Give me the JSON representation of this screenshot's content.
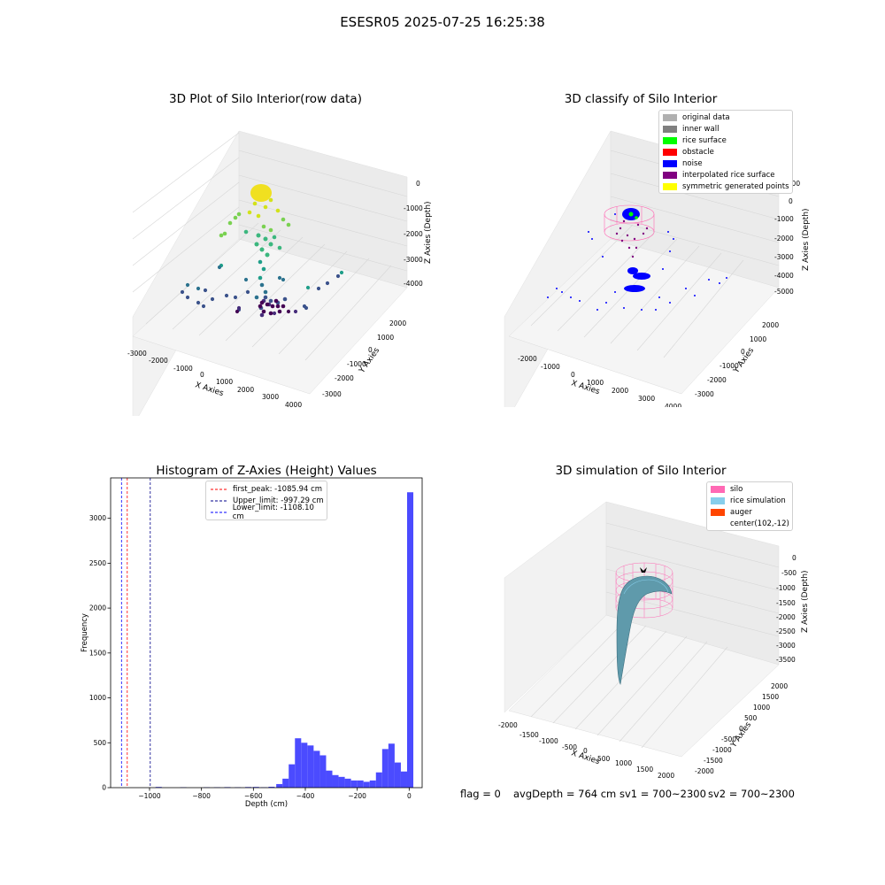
{
  "suptitle": "ESESR05 2025-07-25 16:25:38",
  "status_bar": {
    "flag": "flag = 0",
    "avg_depth": "avgDepth = 764 cm",
    "sv1": "sv1 = 700~2300",
    "sv2": "sv2 = 700~2300"
  },
  "colors": {
    "histogram_bar": "#4b4bff",
    "first_peak": "#ff0000",
    "upper_limit": "#00008b",
    "lower_limit": "#0000ff",
    "silo": "#ff69b4",
    "rice": "#87ceeb",
    "auger": "#ff4500"
  },
  "chart_data": [
    {
      "type": "scatter3d",
      "title": "3D Plot of Silo Interior(row data)",
      "xlabel": "X Axies",
      "ylabel": "Y Axies",
      "zlabel": "Z Axies (Depth)",
      "xticks": [
        "-3000",
        "-2000",
        "-1000",
        "0",
        "1000",
        "2000",
        "3000",
        "4000"
      ],
      "yticks": [
        "2000",
        "1000",
        "0",
        "-1000",
        "-2000",
        "-3000"
      ],
      "zticks": [
        "0",
        "-1000",
        "-2000",
        "-3000",
        "-4000"
      ],
      "colormap": "viridis"
    },
    {
      "type": "scatter3d",
      "title": "3D classify of Silo Interior",
      "xlabel": "X Axies",
      "ylabel": "Y Axies",
      "zlabel": "Z Axies (Depth)",
      "xticks": [
        "-2000",
        "-1000",
        "0",
        "1000",
        "2000",
        "3000",
        "4000"
      ],
      "yticks": [
        "2000",
        "1000",
        "0",
        "-1000",
        "-2000",
        "-3000"
      ],
      "zticks": [
        "1000",
        "0",
        "-1000",
        "-2000",
        "-3000",
        "-4000",
        "-5000"
      ],
      "legend": [
        {
          "label": "original data",
          "color": "#b0b0b0"
        },
        {
          "label": "inner wall",
          "color": "#808080"
        },
        {
          "label": "rice surface",
          "color": "#00ff00"
        },
        {
          "label": "obstacle",
          "color": "#ff0000"
        },
        {
          "label": "noise",
          "color": "#0000ff"
        },
        {
          "label": "interpolated rice surface",
          "color": "#800080"
        },
        {
          "label": "symmetric generated points",
          "color": "#ffff00"
        }
      ]
    },
    {
      "type": "bar",
      "title": "Histogram of Z-Axies (Height) Values",
      "xlabel": "Depth (cm)",
      "ylabel": "Frequency",
      "xlim": [
        -1150,
        50
      ],
      "ylim": [
        0,
        3450
      ],
      "xticks": [
        -1000,
        -800,
        -600,
        -400,
        -200,
        0
      ],
      "yticks": [
        0,
        500,
        1000,
        1500,
        2000,
        2500,
        3000
      ],
      "bin_width": 24,
      "bins": [
        {
          "x": -965,
          "y": 8
        },
        {
          "x": -870,
          "y": 5
        },
        {
          "x": -780,
          "y": 5
        },
        {
          "x": -740,
          "y": 5
        },
        {
          "x": -700,
          "y": 6
        },
        {
          "x": -660,
          "y": 5
        },
        {
          "x": -620,
          "y": 7
        },
        {
          "x": -590,
          "y": 8
        },
        {
          "x": -560,
          "y": 5
        },
        {
          "x": -530,
          "y": 10
        },
        {
          "x": -500,
          "y": 40
        },
        {
          "x": -476,
          "y": 100
        },
        {
          "x": -452,
          "y": 260
        },
        {
          "x": -428,
          "y": 550
        },
        {
          "x": -404,
          "y": 500
        },
        {
          "x": -380,
          "y": 470
        },
        {
          "x": -356,
          "y": 410
        },
        {
          "x": -332,
          "y": 360
        },
        {
          "x": -308,
          "y": 190
        },
        {
          "x": -284,
          "y": 140
        },
        {
          "x": -260,
          "y": 120
        },
        {
          "x": -236,
          "y": 100
        },
        {
          "x": -212,
          "y": 80
        },
        {
          "x": -188,
          "y": 80
        },
        {
          "x": -164,
          "y": 65
        },
        {
          "x": -140,
          "y": 80
        },
        {
          "x": -116,
          "y": 170
        },
        {
          "x": -92,
          "y": 430
        },
        {
          "x": -68,
          "y": 490
        },
        {
          "x": -44,
          "y": 280
        },
        {
          "x": -20,
          "y": 180
        },
        {
          "x": 4,
          "y": 3290
        }
      ],
      "vlines": [
        {
          "label": "first_peak: -1085.94 cm",
          "x": -1085.94,
          "color": "#ff0000"
        },
        {
          "label": "Upper_limit: -997.29 cm",
          "x": -997.29,
          "color": "#00008b"
        },
        {
          "label": "Lower_limit: -1108.10 cm",
          "x": -1108.1,
          "color": "#0000ff"
        }
      ],
      "legend_position": "top-center"
    },
    {
      "type": "surface3d",
      "title": "3D simulation of Silo Interior",
      "xlabel": "X Axies",
      "ylabel": "Y Axies",
      "zlabel": "Z Axies (Depth)",
      "xticks": [
        "-2000",
        "-1500",
        "-1000",
        "-500",
        "0",
        "500",
        "1000",
        "1500",
        "2000"
      ],
      "yticks": [
        "2000",
        "1500",
        "1000",
        "500",
        "0",
        "-500",
        "-1000",
        "-1500",
        "-2000"
      ],
      "zticks": [
        "0",
        "-500",
        "-1000",
        "-1500",
        "-2000",
        "-2500",
        "-3000",
        "-3500"
      ],
      "legend": [
        {
          "label": "silo",
          "color": "#ff69b4"
        },
        {
          "label": "rice simulation",
          "color": "#87ceeb"
        },
        {
          "label": "auger",
          "color": "#ff4500"
        },
        {
          "label": "center(102,-12)",
          "color": ""
        }
      ]
    }
  ]
}
